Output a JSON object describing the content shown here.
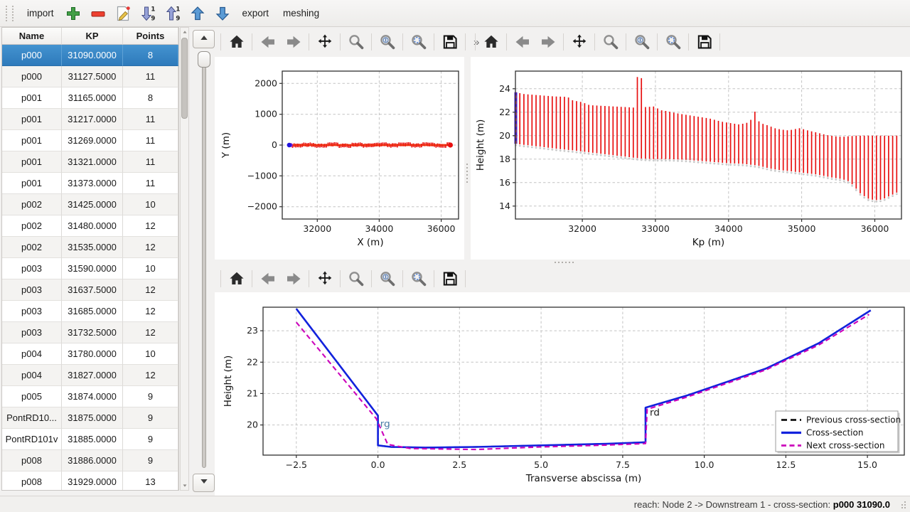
{
  "app_toolbar": {
    "items": [
      {
        "kind": "label",
        "name": "import",
        "label": "import"
      },
      {
        "kind": "icon",
        "name": "add-section",
        "icon": "plus"
      },
      {
        "kind": "icon",
        "name": "remove-section",
        "icon": "minus"
      },
      {
        "kind": "icon",
        "name": "edit-section",
        "icon": "edit"
      },
      {
        "kind": "icon",
        "name": "sort-descending",
        "icon": "sort-desc"
      },
      {
        "kind": "icon",
        "name": "sort-ascending",
        "icon": "sort-asc"
      },
      {
        "kind": "icon",
        "name": "move-up",
        "icon": "arrow-up"
      },
      {
        "kind": "icon",
        "name": "move-down",
        "icon": "arrow-down"
      },
      {
        "kind": "label",
        "name": "export",
        "label": "export"
      },
      {
        "kind": "label",
        "name": "meshing",
        "label": "meshing"
      }
    ]
  },
  "table": {
    "columns": [
      "Name",
      "KP",
      "Points"
    ],
    "selected_index": 0,
    "rows": [
      [
        "p000",
        "31090.0000",
        "8"
      ],
      [
        "p000",
        "31127.5000",
        "11"
      ],
      [
        "p001",
        "31165.0000",
        "8"
      ],
      [
        "p001",
        "31217.0000",
        "11"
      ],
      [
        "p001",
        "31269.0000",
        "11"
      ],
      [
        "p001",
        "31321.0000",
        "11"
      ],
      [
        "p001",
        "31373.0000",
        "11"
      ],
      [
        "p002",
        "31425.0000",
        "10"
      ],
      [
        "p002",
        "31480.0000",
        "12"
      ],
      [
        "p002",
        "31535.0000",
        "12"
      ],
      [
        "p003",
        "31590.0000",
        "10"
      ],
      [
        "p003",
        "31637.5000",
        "12"
      ],
      [
        "p003",
        "31685.0000",
        "12"
      ],
      [
        "p003",
        "31732.5000",
        "12"
      ],
      [
        "p004",
        "31780.0000",
        "10"
      ],
      [
        "p004",
        "31827.0000",
        "12"
      ],
      [
        "p005",
        "31874.0000",
        "9"
      ],
      [
        "PontRD10...",
        "31875.0000",
        "9"
      ],
      [
        "PontRD101v",
        "31885.0000",
        "9"
      ],
      [
        "p008",
        "31886.0000",
        "9"
      ],
      [
        "p008",
        "31929.0000",
        "13"
      ]
    ]
  },
  "mpl_toolbar": {
    "buttons": [
      "home",
      "back",
      "forward",
      "pan",
      "zoom",
      "zoom-selection",
      "zoom-fit",
      "save"
    ],
    "overflow_label": "»"
  },
  "chart_data": [
    {
      "id": "plan_chart",
      "type": "scatter",
      "xlabel": "X (m)",
      "ylabel": "Y (m)",
      "xlim": [
        30870,
        36560
      ],
      "ylim": [
        -2400,
        2400
      ],
      "xticks": [
        [
          32000,
          "32000"
        ],
        [
          34000,
          "34000"
        ],
        [
          36000,
          "36000"
        ]
      ],
      "yticks": [
        [
          -2000,
          "−2000"
        ],
        [
          -1000,
          "−1000"
        ],
        [
          0,
          "0"
        ],
        [
          1000,
          "1000"
        ],
        [
          2000,
          "2000"
        ]
      ],
      "grid": true,
      "ylabel_dx": 75,
      "line": {
        "x_start": 31150,
        "x_end": 36300,
        "y": 0,
        "color": "#ff7f0e"
      },
      "marker_color": "#e81010",
      "n_markers": 100,
      "start_point": {
        "x": 31095,
        "y": 0,
        "color": "#2214dd"
      },
      "second_point": {
        "x": 31145,
        "y": 0,
        "color": "#8822cc"
      },
      "end_point": {
        "x": 36295,
        "y": 0,
        "color": "#e81010"
      }
    },
    {
      "id": "profile_chart",
      "type": "bar",
      "xlabel": "Kp (m)",
      "ylabel": "Height (m)",
      "xlim": [
        31085,
        36365
      ],
      "ylim": [
        12.9,
        25.5
      ],
      "xticks": [
        [
          32000,
          "32000"
        ],
        [
          33000,
          "33000"
        ],
        [
          34000,
          "34000"
        ],
        [
          35000,
          "35000"
        ],
        [
          36000,
          "36000"
        ]
      ],
      "yticks": [
        [
          14,
          "14"
        ],
        [
          16,
          "16"
        ],
        [
          18,
          "18"
        ],
        [
          20,
          "20"
        ],
        [
          22,
          "22"
        ],
        [
          24,
          "24"
        ]
      ],
      "grid": true,
      "ylabel_dx": 45,
      "bar_color": "#e81010",
      "n_bars": 95,
      "kp_range": [
        31090,
        36300
      ],
      "top_envelope": [
        [
          31090,
          23.7
        ],
        [
          31200,
          23.55
        ],
        [
          31400,
          23.45
        ],
        [
          31600,
          23.35
        ],
        [
          31800,
          23.3
        ],
        [
          31870,
          23.0
        ],
        [
          32000,
          22.85
        ],
        [
          32100,
          22.6
        ],
        [
          32250,
          22.55
        ],
        [
          32400,
          22.5
        ],
        [
          32700,
          22.4
        ],
        [
          32900,
          22.45
        ],
        [
          33000,
          22.5
        ],
        [
          33050,
          22.2
        ],
        [
          33150,
          22.1
        ],
        [
          33300,
          21.9
        ],
        [
          33450,
          21.75
        ],
        [
          33600,
          21.6
        ],
        [
          33750,
          21.45
        ],
        [
          33900,
          21.2
        ],
        [
          34000,
          21.1
        ],
        [
          34150,
          20.95
        ],
        [
          34250,
          21.1
        ],
        [
          34300,
          21.35
        ],
        [
          34400,
          21.3
        ],
        [
          34450,
          21.05
        ],
        [
          34550,
          20.85
        ],
        [
          34650,
          20.6
        ],
        [
          34750,
          20.5
        ],
        [
          34820,
          20.45
        ],
        [
          34900,
          20.55
        ],
        [
          34980,
          20.65
        ],
        [
          35050,
          20.5
        ],
        [
          35150,
          20.35
        ],
        [
          35250,
          20.2
        ],
        [
          35350,
          20.05
        ],
        [
          35450,
          19.95
        ],
        [
          35550,
          19.9
        ],
        [
          35650,
          19.95
        ],
        [
          35750,
          20.0
        ],
        [
          36300,
          20.0
        ]
      ],
      "bottom_envelope": [
        [
          31090,
          19.3
        ],
        [
          31300,
          19.15
        ],
        [
          31500,
          19.0
        ],
        [
          31700,
          18.85
        ],
        [
          31870,
          18.75
        ],
        [
          32000,
          18.65
        ],
        [
          32200,
          18.5
        ],
        [
          32400,
          18.35
        ],
        [
          32600,
          18.2
        ],
        [
          32800,
          18.05
        ],
        [
          33000,
          18.0
        ],
        [
          33200,
          18.0
        ],
        [
          33400,
          17.95
        ],
        [
          33600,
          17.85
        ],
        [
          33800,
          17.75
        ],
        [
          34000,
          17.65
        ],
        [
          34200,
          17.6
        ],
        [
          34400,
          17.45
        ],
        [
          34600,
          17.15
        ],
        [
          34800,
          17.0
        ],
        [
          35000,
          16.85
        ],
        [
          35200,
          16.7
        ],
        [
          35400,
          16.45
        ],
        [
          35550,
          16.3
        ],
        [
          35650,
          16.1
        ],
        [
          35700,
          15.8
        ],
        [
          35800,
          15.1
        ],
        [
          35900,
          14.65
        ],
        [
          36000,
          14.5
        ],
        [
          36100,
          14.55
        ],
        [
          36200,
          14.85
        ],
        [
          36300,
          15.15
        ]
      ],
      "spikes": [
        [
          32770,
          25.0
        ],
        [
          32800,
          24.9
        ],
        [
          34355,
          22.05
        ]
      ],
      "selected_bar": {
        "kp": 31090,
        "top": 23.7,
        "bottom": 19.3,
        "color": "#4a18cc",
        "dash_color": "#ff7a00"
      }
    },
    {
      "id": "cross_section_chart",
      "type": "line",
      "xlabel": "Transverse abscissa (m)",
      "ylabel": "Height (m)",
      "xlim": [
        -3.52,
        16.13
      ],
      "ylim": [
        19.04,
        23.75
      ],
      "xticks": [
        [
          -2.5,
          "−2.5"
        ],
        [
          0,
          "0.0"
        ],
        [
          2.5,
          "2.5"
        ],
        [
          5,
          "5.0"
        ],
        [
          7.5,
          "7.5"
        ],
        [
          10,
          "10.0"
        ],
        [
          12.5,
          "12.5"
        ],
        [
          15,
          "15.0"
        ]
      ],
      "yticks": [
        [
          20,
          "20"
        ],
        [
          21,
          "21"
        ],
        [
          22,
          "22"
        ],
        [
          23,
          "23"
        ]
      ],
      "grid": true,
      "ylabel_dx": 45,
      "series": [
        {
          "name": "Previous cross-section",
          "color": "#111111",
          "dash": "8,5",
          "width": 2.2,
          "points": [
            [
              -2.5,
              23.7
            ],
            [
              0.0,
              20.3
            ],
            [
              0.0,
              19.35
            ],
            [
              0.4,
              19.3
            ],
            [
              1.5,
              19.28
            ],
            [
              3.0,
              19.3
            ],
            [
              5.0,
              19.35
            ],
            [
              7.0,
              19.4
            ],
            [
              8.2,
              19.45
            ],
            [
              8.2,
              20.55
            ],
            [
              9.5,
              20.95
            ],
            [
              11.9,
              21.8
            ],
            [
              12.3,
              22.0
            ],
            [
              13.5,
              22.6
            ],
            [
              15.1,
              23.65
            ]
          ]
        },
        {
          "name": "Cross-section",
          "color": "#1222dd",
          "dash": null,
          "width": 2.6,
          "points": [
            [
              -2.5,
              23.7
            ],
            [
              0.0,
              20.3
            ],
            [
              0.0,
              19.35
            ],
            [
              0.4,
              19.3
            ],
            [
              1.5,
              19.28
            ],
            [
              3.0,
              19.3
            ],
            [
              5.0,
              19.35
            ],
            [
              7.0,
              19.4
            ],
            [
              8.2,
              19.45
            ],
            [
              8.2,
              20.55
            ],
            [
              9.5,
              20.95
            ],
            [
              11.9,
              21.8
            ],
            [
              12.3,
              22.0
            ],
            [
              13.5,
              22.6
            ],
            [
              15.1,
              23.65
            ]
          ]
        },
        {
          "name": "Next cross-section",
          "color": "#cc00bb",
          "dash": "7,4.5",
          "width": 2.1,
          "points": [
            [
              -2.5,
              23.27
            ],
            [
              -0.05,
              20.2
            ],
            [
              0.3,
              19.38
            ],
            [
              1.0,
              19.25
            ],
            [
              3.0,
              19.22
            ],
            [
              5.0,
              19.3
            ],
            [
              7.0,
              19.36
            ],
            [
              8.2,
              19.41
            ],
            [
              8.25,
              20.5
            ],
            [
              9.5,
              20.9
            ],
            [
              11.9,
              21.76
            ],
            [
              12.3,
              21.96
            ],
            [
              13.5,
              22.54
            ],
            [
              15.05,
              23.52
            ]
          ]
        }
      ],
      "annotations": [
        {
          "text": "rg",
          "x": 0.07,
          "y": 19.93,
          "color": "#4a7da8"
        },
        {
          "text": "rd",
          "x": 8.33,
          "y": 20.3,
          "color": "#1a1a1a"
        }
      ],
      "legend": {
        "position": "lower right",
        "entries": [
          "Previous cross-section",
          "Cross-section",
          "Next cross-section"
        ]
      }
    }
  ],
  "status_bar": {
    "prefix": "reach: Node 2 -> Downstream 1 - cross-section: ",
    "selection": "p000 31090.0"
  }
}
